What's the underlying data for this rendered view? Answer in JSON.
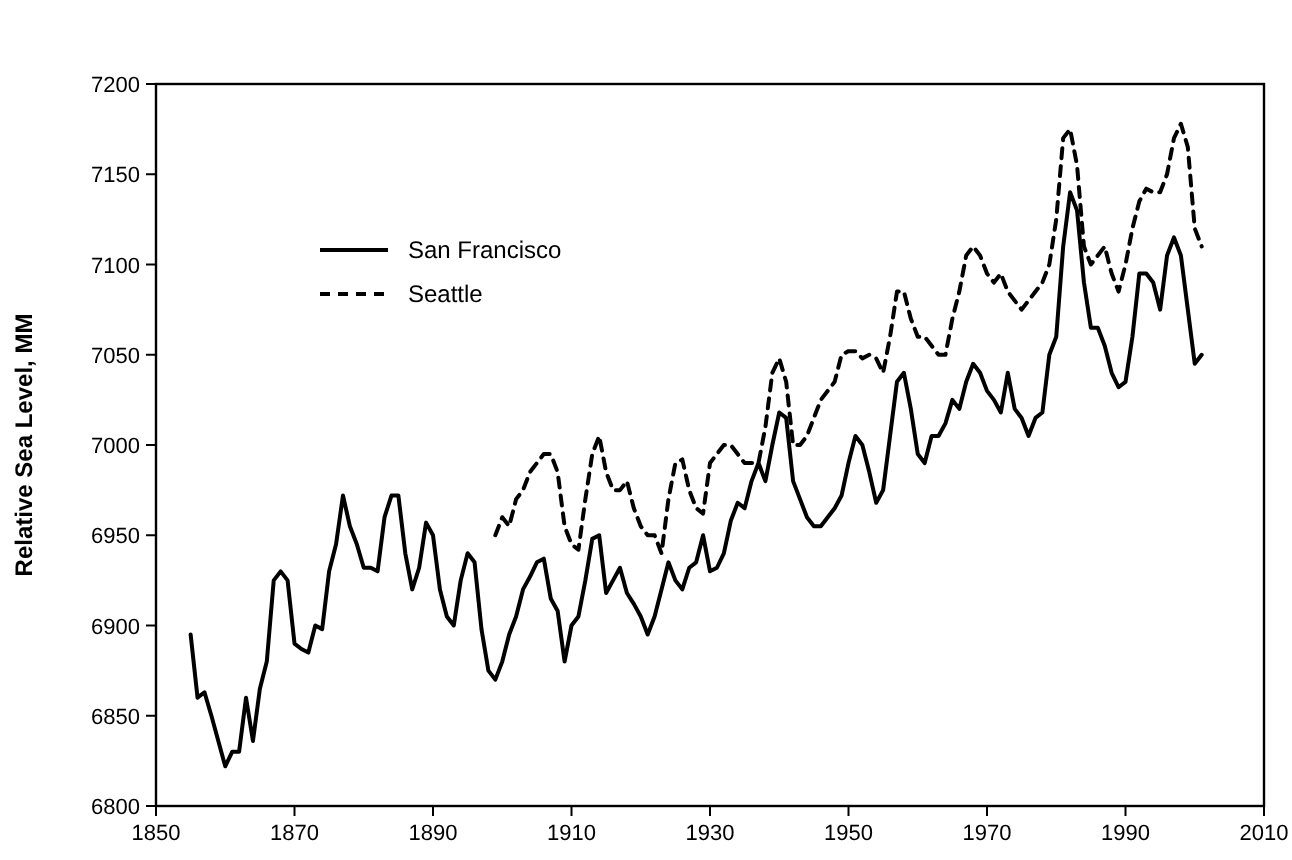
{
  "chart_data": {
    "type": "line",
    "ylabel": "Relative Sea Level, MM",
    "xlim": [
      1850,
      2010
    ],
    "xticks": [
      1850,
      1870,
      1890,
      1910,
      1930,
      1950,
      1970,
      1990,
      2010
    ],
    "ylim": [
      6800,
      7200
    ],
    "yticks": [
      6800,
      6850,
      6900,
      6950,
      7000,
      7050,
      7100,
      7150,
      7200
    ],
    "grid": false,
    "legend": "top left",
    "marker": "none",
    "series": [
      {
        "name": "San Francisco",
        "color": "#000000",
        "line_style": "solid",
        "x": [
          1855,
          1856,
          1857,
          1858,
          1860,
          1861,
          1862,
          1863,
          1864,
          1865,
          1866,
          1867,
          1868,
          1869,
          1870,
          1871,
          1872,
          1873,
          1874,
          1875,
          1876,
          1877,
          1878,
          1879,
          1880,
          1881,
          1882,
          1883,
          1884,
          1885,
          1886,
          1887,
          1888,
          1889,
          1890,
          1891,
          1892,
          1893,
          1894,
          1895,
          1896,
          1897,
          1898,
          1899,
          1900,
          1901,
          1902,
          1903,
          1904,
          1905,
          1906,
          1907,
          1908,
          1909,
          1910,
          1911,
          1912,
          1913,
          1914,
          1915,
          1916,
          1917,
          1918,
          1919,
          1920,
          1921,
          1922,
          1923,
          1924,
          1925,
          1926,
          1927,
          1928,
          1929,
          1930,
          1931,
          1932,
          1933,
          1934,
          1935,
          1936,
          1937,
          1938,
          1939,
          1940,
          1941,
          1942,
          1943,
          1944,
          1945,
          1946,
          1947,
          1948,
          1949,
          1950,
          1951,
          1952,
          1953,
          1954,
          1955,
          1956,
          1957,
          1958,
          1959,
          1960,
          1961,
          1962,
          1963,
          1964,
          1965,
          1966,
          1967,
          1968,
          1969,
          1970,
          1971,
          1972,
          1973,
          1974,
          1975,
          1976,
          1977,
          1978,
          1979,
          1980,
          1981,
          1982,
          1983,
          1984,
          1985,
          1986,
          1987,
          1988,
          1989,
          1990,
          1991,
          1992,
          1993,
          1994,
          1995,
          1996,
          1997,
          1998,
          1999,
          2000,
          2001
        ],
        "values": [
          6895,
          6860,
          6863,
          6850,
          6822,
          6830,
          6830,
          6860,
          6836,
          6865,
          6880,
          6925,
          6930,
          6925,
          6890,
          6887,
          6885,
          6900,
          6898,
          6930,
          6945,
          6972,
          6955,
          6945,
          6932,
          6932,
          6930,
          6960,
          6972,
          6972,
          6940,
          6920,
          6932,
          6957,
          6950,
          6920,
          6905,
          6900,
          6925,
          6940,
          6935,
          6898,
          6875,
          6870,
          6880,
          6895,
          6905,
          6920,
          6927,
          6935,
          6937,
          6915,
          6908,
          6880,
          6900,
          6905,
          6925,
          6948,
          6950,
          6918,
          6925,
          6932,
          6918,
          6912,
          6905,
          6895,
          6905,
          6920,
          6935,
          6925,
          6920,
          6932,
          6935,
          6950,
          6930,
          6932,
          6940,
          6958,
          6968,
          6965,
          6980,
          6990,
          6980,
          7000,
          7018,
          7015,
          6980,
          6970,
          6960,
          6955,
          6955,
          6960,
          6965,
          6972,
          6990,
          7005,
          7000,
          6985,
          6968,
          6975,
          7005,
          7035,
          7040,
          7020,
          6995,
          6990,
          7005,
          7005,
          7012,
          7025,
          7020,
          7035,
          7045,
          7040,
          7030,
          7025,
          7018,
          7040,
          7020,
          7015,
          7005,
          7015,
          7018,
          7050,
          7060,
          7110,
          7140,
          7130,
          7090,
          7065,
          7065,
          7055,
          7040,
          7032,
          7035,
          7060,
          7095,
          7095,
          7090,
          7075,
          7105,
          7115,
          7105,
          7075,
          7045,
          7050
        ]
      },
      {
        "name": "Seattle",
        "color": "#000000",
        "line_style": "dashed",
        "x": [
          1899,
          1900,
          1901,
          1902,
          1903,
          1904,
          1905,
          1906,
          1907,
          1908,
          1909,
          1910,
          1911,
          1912,
          1913,
          1914,
          1915,
          1916,
          1917,
          1918,
          1919,
          1920,
          1921,
          1922,
          1923,
          1924,
          1925,
          1926,
          1927,
          1928,
          1929,
          1930,
          1931,
          1932,
          1933,
          1934,
          1935,
          1936,
          1937,
          1938,
          1939,
          1940,
          1941,
          1942,
          1943,
          1944,
          1945,
          1946,
          1947,
          1948,
          1949,
          1950,
          1951,
          1952,
          1953,
          1954,
          1955,
          1956,
          1957,
          1958,
          1959,
          1960,
          1961,
          1962,
          1963,
          1964,
          1965,
          1966,
          1967,
          1968,
          1969,
          1970,
          1971,
          1972,
          1973,
          1974,
          1975,
          1976,
          1977,
          1978,
          1979,
          1980,
          1981,
          1982,
          1983,
          1984,
          1985,
          1986,
          1987,
          1988,
          1989,
          1990,
          1991,
          1992,
          1993,
          1994,
          1995,
          1996,
          1997,
          1998,
          1999,
          2000,
          2001
        ],
        "values": [
          6950,
          6960,
          6955,
          6970,
          6975,
          6985,
          6990,
          6995,
          6995,
          6985,
          6955,
          6945,
          6942,
          6970,
          6995,
          7005,
          6985,
          6975,
          6975,
          6980,
          6965,
          6955,
          6950,
          6950,
          6940,
          6970,
          6990,
          6992,
          6975,
          6965,
          6962,
          6990,
          6995,
          7000,
          7000,
          6995,
          6990,
          6990,
          6990,
          7010,
          7040,
          7048,
          7035,
          7000,
          7000,
          7005,
          7015,
          7025,
          7030,
          7035,
          7050,
          7052,
          7052,
          7048,
          7050,
          7048,
          7040,
          7060,
          7085,
          7085,
          7070,
          7060,
          7060,
          7055,
          7050,
          7050,
          7070,
          7085,
          7105,
          7110,
          7105,
          7095,
          7090,
          7095,
          7085,
          7080,
          7075,
          7080,
          7085,
          7090,
          7100,
          7125,
          7170,
          7175,
          7155,
          7110,
          7100,
          7105,
          7110,
          7095,
          7085,
          7100,
          7120,
          7135,
          7142,
          7140,
          7140,
          7150,
          7170,
          7178,
          7165,
          7120,
          7110
        ]
      }
    ]
  }
}
